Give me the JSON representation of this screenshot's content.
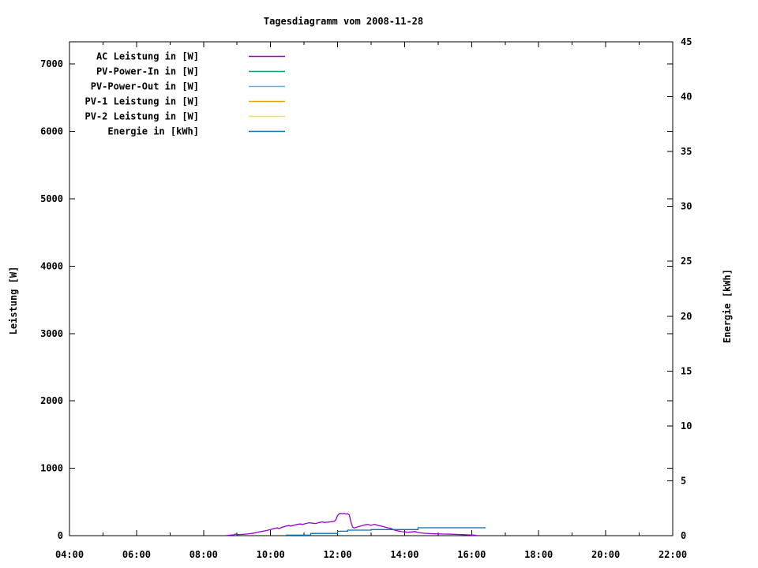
{
  "app": {
    "background": "#ffffff",
    "text_color": "#000000"
  },
  "chart_data": {
    "type": "line",
    "title": "Tagesdiagramm vom 2008-11-28",
    "xlabel": "",
    "ylabel": "Leistung [W]",
    "y2label": "Energie [kWh]",
    "grid": false,
    "legend_position": "top-left-inside",
    "x_axis": {
      "unit": "time",
      "min_hour": 4,
      "max_hour": 22,
      "major_tick_every_hours": 2,
      "minor_tick_every_hours": 1,
      "tick_labels": [
        "04:00",
        "06:00",
        "08:00",
        "10:00",
        "12:00",
        "14:00",
        "16:00",
        "18:00",
        "20:00",
        "22:00"
      ]
    },
    "y_axis": {
      "min": 0,
      "max": 7000,
      "tick_step": 1000,
      "tick_labels": [
        "0",
        "1000",
        "2000",
        "3000",
        "4000",
        "5000",
        "6000",
        "7000"
      ]
    },
    "y2_axis": {
      "min": 0,
      "max": 45,
      "tick_step": 5,
      "tick_labels": [
        "0",
        "5",
        "10",
        "15",
        "20",
        "25",
        "30",
        "35",
        "40",
        "45"
      ]
    },
    "legend": [
      {
        "label": "AC Leistung in [W]",
        "color": "#9400d3"
      },
      {
        "label": "PV-Power-In in [W]",
        "color": "#009e73"
      },
      {
        "label": "PV-Power-Out in [W]",
        "color": "#56b4e9"
      },
      {
        "label": "PV-1 Leistung in [W]",
        "color": "#e69f00"
      },
      {
        "label": "PV-2 Leistung in [W]",
        "color": "#f0e442"
      },
      {
        "label": "Energie in [kWh]",
        "color": "#0072b2"
      }
    ],
    "series": [
      {
        "name": "AC Leistung in [W]",
        "color": "#9400d3",
        "axis": "y1",
        "style": "lines",
        "points": [
          [
            8.7,
            3
          ],
          [
            8.8,
            8
          ],
          [
            8.9,
            12
          ],
          [
            8.95,
            25
          ],
          [
            9.0,
            15
          ],
          [
            9.1,
            18
          ],
          [
            9.2,
            20
          ],
          [
            9.3,
            25
          ],
          [
            9.4,
            30
          ],
          [
            9.5,
            38
          ],
          [
            9.6,
            50
          ],
          [
            9.7,
            60
          ],
          [
            9.8,
            68
          ],
          [
            9.9,
            78
          ],
          [
            10.0,
            90
          ],
          [
            10.1,
            105
          ],
          [
            10.2,
            115
          ],
          [
            10.25,
            105
          ],
          [
            10.35,
            125
          ],
          [
            10.45,
            140
          ],
          [
            10.55,
            150
          ],
          [
            10.6,
            143
          ],
          [
            10.7,
            155
          ],
          [
            10.8,
            168
          ],
          [
            10.9,
            175
          ],
          [
            10.95,
            165
          ],
          [
            11.05,
            180
          ],
          [
            11.15,
            192
          ],
          [
            11.25,
            185
          ],
          [
            11.35,
            180
          ],
          [
            11.45,
            195
          ],
          [
            11.55,
            205
          ],
          [
            11.6,
            196
          ],
          [
            11.7,
            200
          ],
          [
            11.8,
            206
          ],
          [
            11.9,
            212
          ],
          [
            11.95,
            235
          ],
          [
            12.0,
            300
          ],
          [
            12.05,
            326
          ],
          [
            12.1,
            330
          ],
          [
            12.15,
            324
          ],
          [
            12.2,
            330
          ],
          [
            12.25,
            320
          ],
          [
            12.3,
            326
          ],
          [
            12.35,
            308
          ],
          [
            12.4,
            200
          ],
          [
            12.45,
            125
          ],
          [
            12.5,
            112
          ],
          [
            12.6,
            130
          ],
          [
            12.7,
            145
          ],
          [
            12.8,
            158
          ],
          [
            12.9,
            168
          ],
          [
            12.95,
            158
          ],
          [
            13.0,
            152
          ],
          [
            13.05,
            162
          ],
          [
            13.1,
            168
          ],
          [
            13.2,
            152
          ],
          [
            13.3,
            142
          ],
          [
            13.4,
            130
          ],
          [
            13.5,
            116
          ],
          [
            13.6,
            105
          ],
          [
            13.7,
            82
          ],
          [
            13.8,
            70
          ],
          [
            13.9,
            62
          ],
          [
            14.0,
            56
          ],
          [
            14.1,
            50
          ],
          [
            14.2,
            55
          ],
          [
            14.3,
            62
          ],
          [
            14.4,
            48
          ],
          [
            14.5,
            40
          ],
          [
            14.6,
            35
          ],
          [
            14.75,
            30
          ],
          [
            14.9,
            27
          ],
          [
            15.05,
            25
          ],
          [
            15.2,
            23
          ],
          [
            15.4,
            21
          ],
          [
            15.6,
            18
          ],
          [
            15.8,
            14
          ],
          [
            15.95,
            11
          ],
          [
            16.05,
            8
          ],
          [
            16.15,
            5
          ]
        ]
      },
      {
        "name": "PV-Power-In in [W]",
        "color": "#009e73",
        "axis": "y1",
        "style": "lines",
        "points": []
      },
      {
        "name": "PV-Power-Out in [W]",
        "color": "#56b4e9",
        "axis": "y1",
        "style": "lines",
        "points": []
      },
      {
        "name": "PV-1 Leistung in [W]",
        "color": "#e69f00",
        "axis": "y1",
        "style": "lines",
        "points": []
      },
      {
        "name": "PV-2 Leistung in [W]",
        "color": "#f0e442",
        "axis": "y1",
        "style": "lines",
        "points": []
      },
      {
        "name": "Energie in [kWh]",
        "color": "#0072b2",
        "axis": "y2",
        "style": "steps",
        "points": [
          [
            10.45,
            0.05
          ],
          [
            11.2,
            0.2
          ],
          [
            12.0,
            0.4
          ],
          [
            12.3,
            0.5
          ],
          [
            13.0,
            0.55
          ],
          [
            14.4,
            0.72
          ],
          [
            16.42,
            0.72
          ]
        ]
      }
    ]
  }
}
